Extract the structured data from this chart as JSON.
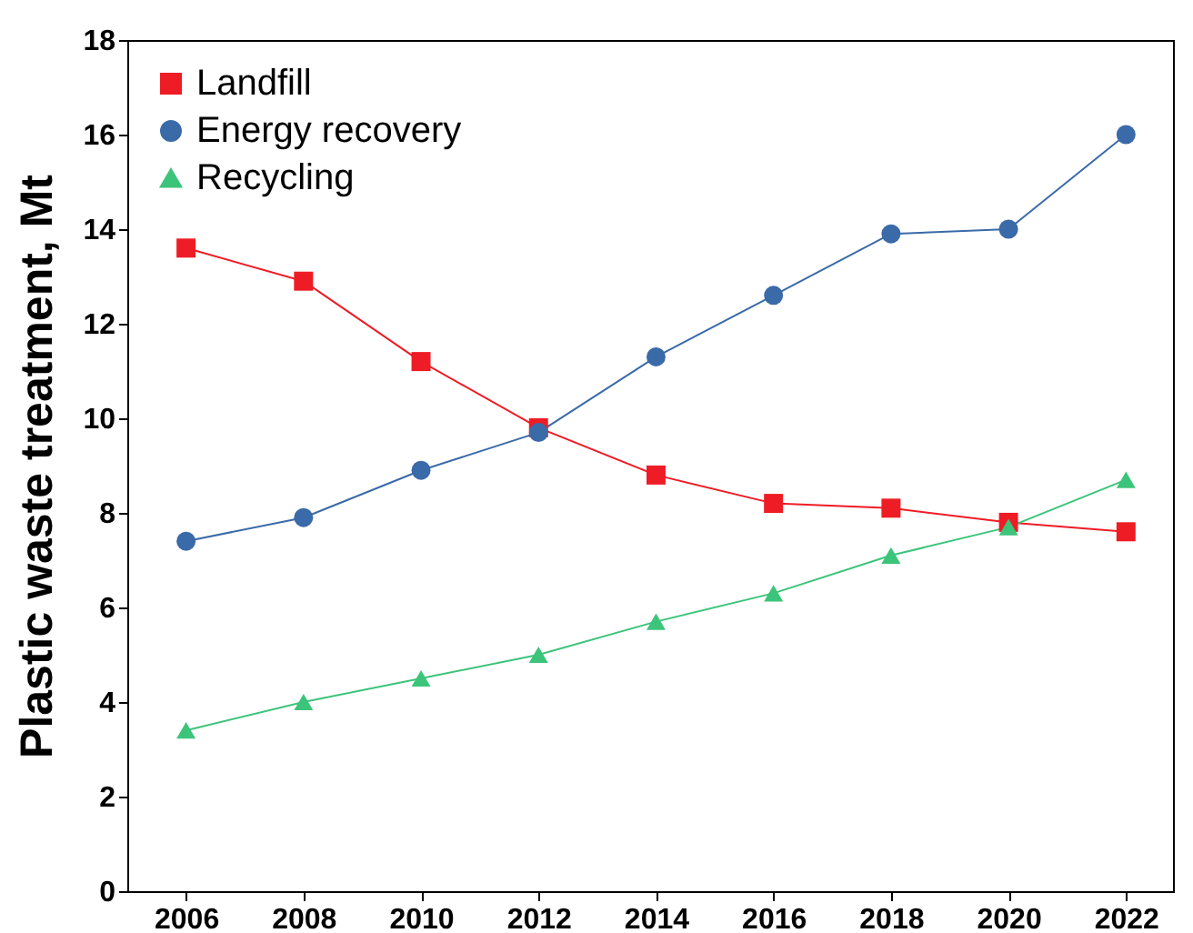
{
  "chart_data": {
    "type": "line",
    "ylabel": "Plastic waste treatment, Mt",
    "x": [
      2006,
      2008,
      2010,
      2012,
      2014,
      2016,
      2018,
      2020,
      2022
    ],
    "series": [
      {
        "name": "Landfill",
        "color": "#ee1c25",
        "marker": "square",
        "values": [
          13.6,
          12.9,
          11.2,
          9.8,
          8.8,
          8.2,
          8.1,
          7.8,
          7.6
        ]
      },
      {
        "name": "Energy recovery",
        "color": "#3a6aa8",
        "marker": "circle",
        "values": [
          7.4,
          7.9,
          8.9,
          9.7,
          11.3,
          12.6,
          13.9,
          14.0,
          16.0
        ]
      },
      {
        "name": "Recycling",
        "color": "#3cc47a",
        "marker": "triangle",
        "values": [
          3.4,
          4.0,
          4.5,
          5.0,
          5.7,
          6.3,
          7.1,
          7.7,
          8.7
        ]
      }
    ],
    "xlim": [
      2005,
      2022.8
    ],
    "xticks": [
      2006,
      2008,
      2010,
      2012,
      2014,
      2016,
      2018,
      2020,
      2022
    ],
    "ylim": [
      0,
      18
    ],
    "yticks": [
      0,
      2,
      4,
      6,
      8,
      10,
      12,
      14,
      16,
      18
    ],
    "legend": "top left",
    "grid": false
  }
}
